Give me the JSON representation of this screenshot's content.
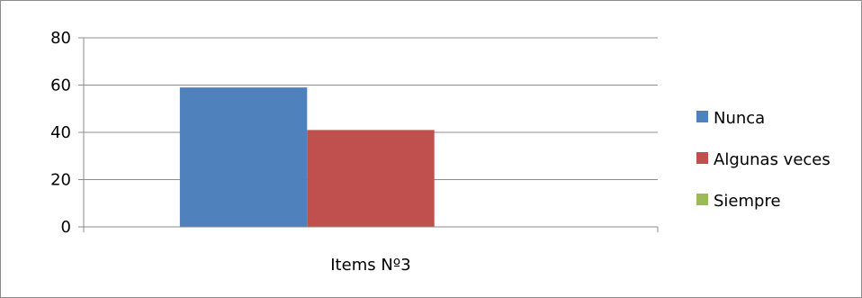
{
  "chart_data": {
    "type": "bar",
    "categories": [
      "Items Nº3"
    ],
    "series": [
      {
        "name": "Nunca",
        "values": [
          59
        ],
        "color": "#4f81bd"
      },
      {
        "name": "Algunas veces",
        "values": [
          41
        ],
        "color": "#c0504d"
      },
      {
        "name": "Siempre",
        "values": [
          0
        ],
        "color": "#9bbb59"
      }
    ],
    "y_ticks": [
      "0",
      "20",
      "40",
      "60",
      "80"
    ],
    "ylim": [
      0,
      80
    ],
    "grid": true,
    "legend_position": "right"
  }
}
